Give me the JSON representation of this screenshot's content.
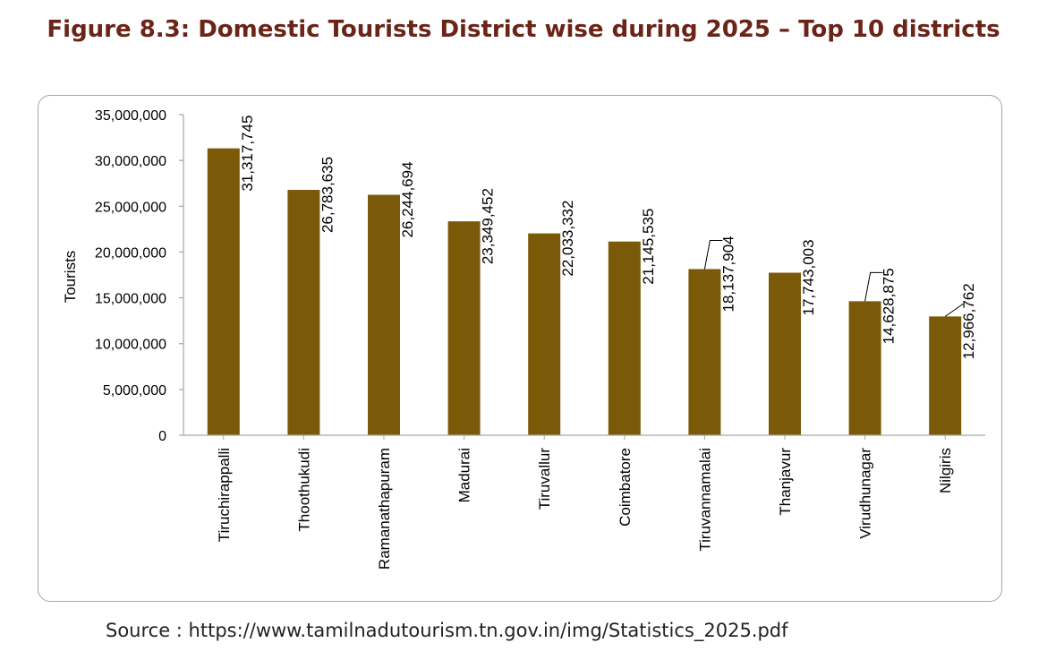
{
  "figure": {
    "title": "Figure 8.3: Domestic Tourists District wise during 2025 – Top 10 districts",
    "source": "Source : https://www.tamilnadutourism.tn.gov.in/img/Statistics_2025.pdf"
  },
  "colors": {
    "bar": "#7a5a08",
    "title": "#6b2418",
    "axis": "#a6a6a6"
  },
  "chart_data": {
    "type": "bar",
    "title": "",
    "xlabel": "",
    "ylabel": "Tourists",
    "ylim": [
      0,
      35000000
    ],
    "yticks": [
      0,
      5000000,
      10000000,
      15000000,
      20000000,
      25000000,
      30000000,
      35000000
    ],
    "ytick_labels": [
      "0",
      "5,000,000",
      "10,000,000",
      "15,000,000",
      "20,000,000",
      "25,000,000",
      "30,000,000",
      "35,000,000"
    ],
    "grid": false,
    "categories": [
      "Tiruchirappalli",
      "Thoothukudi",
      "Ramanathapuram",
      "Madurai",
      "Tiruvallur",
      "Coimbatore",
      "Tiruvannamalai",
      "Thanjavur",
      "Virudhunagar",
      "Nilgiris"
    ],
    "values": [
      31317745,
      26783635,
      26244694,
      23349452,
      22033332,
      21145535,
      18137904,
      17743003,
      14628875,
      12966762
    ],
    "data_labels": [
      "31,317,745",
      "26,783,635",
      "26,244,694",
      "23,349,452",
      "22,033,332",
      "21,145,535",
      "18,137,904",
      "17,743,003",
      "14,628,875",
      "12,966,762"
    ]
  }
}
